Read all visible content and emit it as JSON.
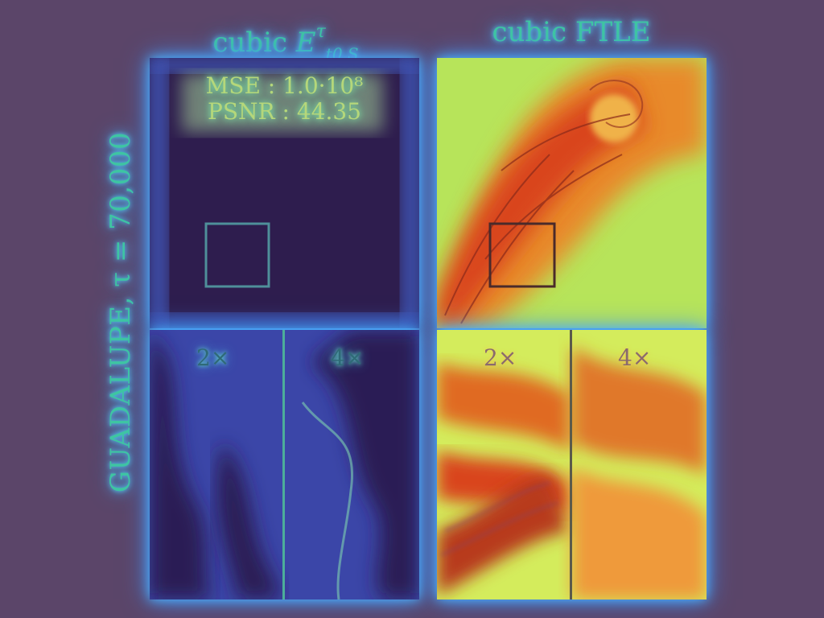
{
  "columns": {
    "left": {
      "prefix": "cubic ",
      "symbol": "E",
      "sup": "τ",
      "sub": "t0,S"
    },
    "right": {
      "title": "cubic FTLE"
    }
  },
  "row_label": {
    "text": "GUADALUPE, τ = 70,000"
  },
  "metrics": {
    "mse": "MSE : 1.0·10⁸",
    "psnr": "PSNR : 44.35"
  },
  "zoom_labels": {
    "left_2x": "2×",
    "left_4x": "4×",
    "right_2x": "2×",
    "right_4x": "4×"
  },
  "colors": {
    "background": "#5b4569",
    "label_text": "#3fc5a2",
    "glow": "#4fb9ff",
    "error_field": "#2e1d4e",
    "ftle_high": "#d9441c",
    "ftle_low": "#a8f05a"
  }
}
